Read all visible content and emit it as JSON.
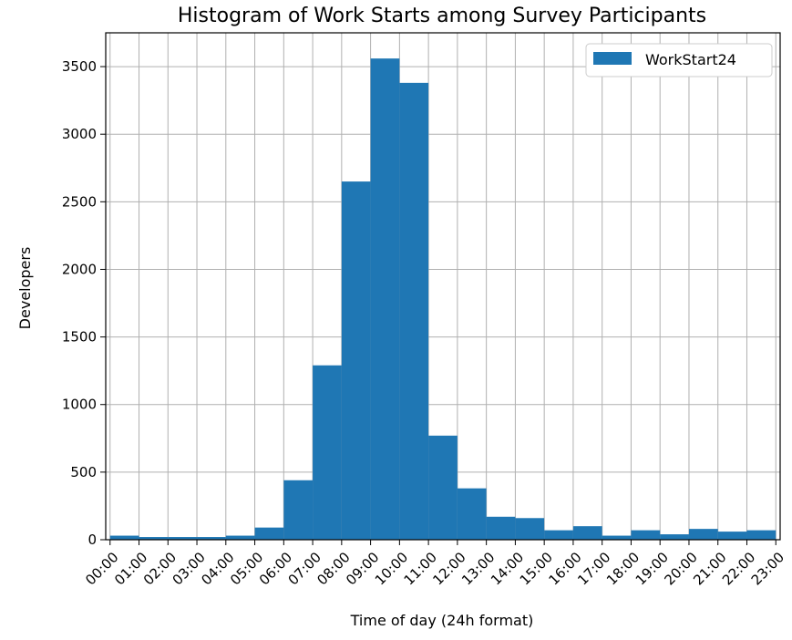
{
  "chart_data": {
    "type": "bar",
    "title": "Histogram of Work Starts among Survey Participants",
    "xlabel": "Time of day (24h format)",
    "ylabel": "Developers",
    "grid": true,
    "legend": {
      "position": "top-right",
      "entries": [
        "WorkStart24"
      ]
    },
    "categories": [
      "00:00",
      "01:00",
      "02:00",
      "03:00",
      "04:00",
      "05:00",
      "06:00",
      "07:00",
      "08:00",
      "09:00",
      "10:00",
      "11:00",
      "12:00",
      "13:00",
      "14:00",
      "15:00",
      "16:00",
      "17:00",
      "18:00",
      "19:00",
      "20:00",
      "21:00",
      "22:00",
      "23:00"
    ],
    "series": [
      {
        "name": "WorkStart24",
        "color": "#1f77b4",
        "values": [
          30,
          20,
          20,
          20,
          30,
          90,
          440,
          1290,
          2650,
          3560,
          3380,
          770,
          380,
          170,
          160,
          70,
          100,
          30,
          70,
          40,
          80,
          60,
          70,
          30
        ]
      }
    ],
    "xlim": [
      -0.15,
      23.15
    ],
    "ylim": [
      0,
      3750
    ],
    "yticks": [
      0,
      500,
      1000,
      1500,
      2000,
      2500,
      3000,
      3500
    ]
  }
}
